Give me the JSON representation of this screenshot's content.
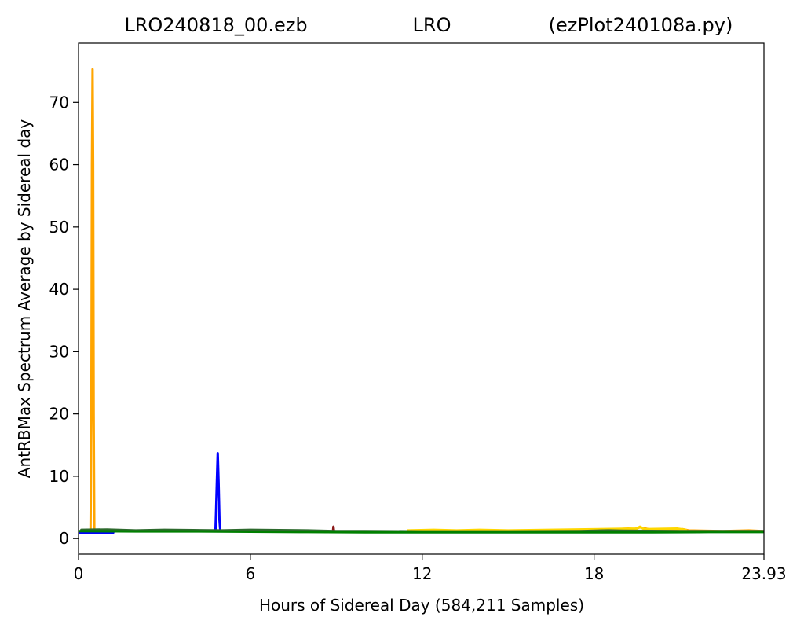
{
  "title": {
    "left": "LRO240818_00.ezb",
    "center": "LRO",
    "right": "(ezPlot240108a.py)"
  },
  "chart_data": {
    "type": "line",
    "xlabel": "Hours of Sidereal Day  (584,211 Samples)",
    "ylabel": "AntRBMax Spectrum Average by Sidereal day",
    "xlim": [
      0,
      23.93
    ],
    "ylim": [
      -2.5,
      79.5
    ],
    "xticks": [
      0,
      6,
      12,
      18,
      23.93
    ],
    "xtick_labels": [
      "0",
      "6",
      "12",
      "18",
      "23.93"
    ],
    "yticks": [
      0,
      10,
      20,
      30,
      40,
      50,
      60,
      70
    ],
    "ytick_labels": [
      "0",
      "10",
      "20",
      "30",
      "40",
      "50",
      "60",
      "70"
    ],
    "grid": false,
    "legend": "none",
    "series": [
      {
        "color": "#ffa500",
        "width": 3,
        "points": [
          [
            0.3,
            1.1
          ],
          [
            0.42,
            1.2
          ],
          [
            0.45,
            20
          ],
          [
            0.47,
            60
          ],
          [
            0.49,
            75.3
          ],
          [
            0.51,
            60
          ],
          [
            0.53,
            20
          ],
          [
            0.55,
            1.4
          ],
          [
            0.62,
            1.1
          ]
        ]
      },
      {
        "color": "#ffa500",
        "width": 3,
        "points": [
          [
            18.85,
            1.5
          ],
          [
            19.2,
            1.6
          ],
          [
            19.4,
            1.5
          ],
          [
            19.6,
            1.8
          ],
          [
            19.8,
            1.6
          ],
          [
            20.1,
            1.3
          ],
          [
            20.9,
            1.4
          ],
          [
            21.1,
            1.5
          ],
          [
            21.3,
            1.3
          ],
          [
            22.5,
            1.2
          ],
          [
            23.4,
            1.3
          ],
          [
            23.9,
            1.2
          ]
        ]
      },
      {
        "color": "#ffd700",
        "width": 3,
        "points": [
          [
            11.5,
            1.3
          ],
          [
            12.4,
            1.4
          ],
          [
            13.2,
            1.3
          ],
          [
            14.0,
            1.4
          ],
          [
            15.0,
            1.3
          ],
          [
            19.5,
            1.6
          ],
          [
            19.6,
            1.9
          ],
          [
            19.75,
            1.5
          ],
          [
            20.9,
            1.6
          ],
          [
            21.2,
            1.4
          ]
        ]
      },
      {
        "color": "#8b1a1a",
        "width": 3,
        "points": [
          [
            8.88,
            1.1
          ],
          [
            8.9,
            1.9
          ],
          [
            8.92,
            1.1
          ]
        ]
      },
      {
        "color": "#0000ff",
        "width": 4,
        "points": [
          [
            0.0,
            1.0
          ],
          [
            0.6,
            1.0
          ],
          [
            1.2,
            1.0
          ]
        ]
      },
      {
        "color": "#0000ff",
        "width": 3,
        "points": [
          [
            4.78,
            1.2
          ],
          [
            4.8,
            4
          ],
          [
            4.83,
            9
          ],
          [
            4.86,
            13.7
          ],
          [
            4.89,
            9
          ],
          [
            4.92,
            3
          ],
          [
            4.95,
            1.2
          ]
        ]
      },
      {
        "color": "#2d6a2d",
        "width": 3,
        "points": [
          [
            0.1,
            1.4
          ],
          [
            1.0,
            1.45
          ],
          [
            2.0,
            1.3
          ],
          [
            3.0,
            1.4
          ],
          [
            4.0,
            1.35
          ],
          [
            5.0,
            1.3
          ],
          [
            6.0,
            1.4
          ],
          [
            7.0,
            1.35
          ],
          [
            8.0,
            1.3
          ],
          [
            9.0,
            1.2
          ],
          [
            10.0,
            1.2
          ],
          [
            12.0,
            1.15
          ],
          [
            15.0,
            1.15
          ],
          [
            17.5,
            1.2
          ],
          [
            18.5,
            1.3
          ],
          [
            19.0,
            1.25
          ],
          [
            21.0,
            1.2
          ],
          [
            23.9,
            1.2
          ]
        ]
      },
      {
        "color": "#008000",
        "width": 3,
        "points": [
          [
            0.0,
            1.2
          ],
          [
            2.0,
            1.15
          ],
          [
            4.0,
            1.15
          ],
          [
            6.0,
            1.1
          ],
          [
            8.0,
            1.05
          ],
          [
            10.0,
            1.0
          ],
          [
            12.0,
            1.0
          ],
          [
            14.0,
            1.0
          ],
          [
            16.0,
            1.0
          ],
          [
            18.0,
            1.0
          ],
          [
            20.0,
            1.0
          ],
          [
            22.0,
            1.05
          ],
          [
            23.93,
            1.05
          ]
        ]
      }
    ]
  }
}
